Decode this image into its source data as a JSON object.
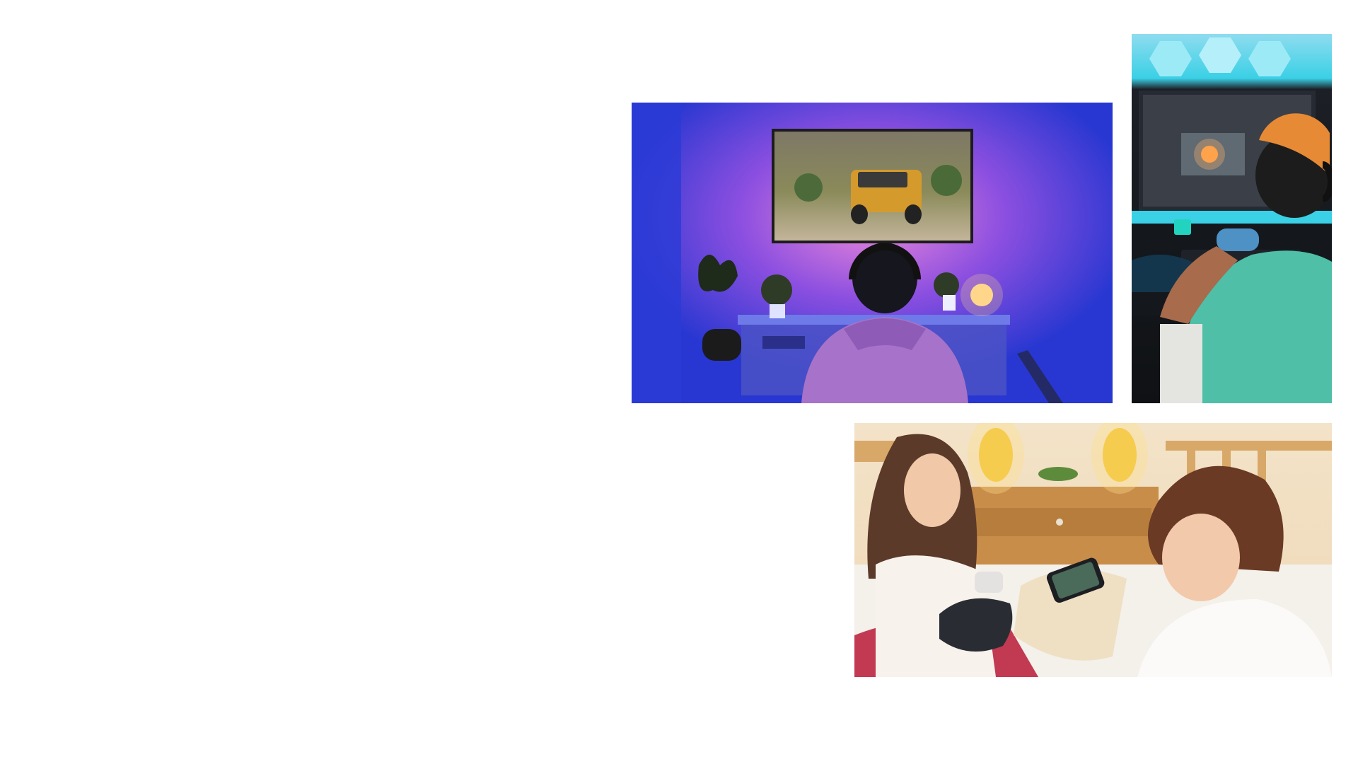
{
  "page": {
    "background": "#ffffff"
  },
  "hero": {
    "image_description_icon": "racing-game-scene-icon",
    "colors": {
      "snow": "#f4f5f8",
      "fog": "#dcdcdc",
      "hills": "#8f8a80",
      "yellow_truck": "#d79a2a",
      "red_truck": "#b73a2c"
    }
  },
  "tiles": [
    {
      "id": "living-room",
      "icon": "console-tv-gaming-photo-icon"
    },
    {
      "id": "pc-desk",
      "icon": "pc-gaming-desk-photo-icon"
    },
    {
      "id": "bedroom",
      "icon": "mobile-cloud-gaming-photo-icon"
    }
  ],
  "palette": {
    "living_bg_blue": "#2a3bd6",
    "living_glow_pink": "#e48ad9",
    "desk_cyan": "#3ad0e6",
    "desk_shirt": "#4fbfa8",
    "bedroom_warm": "#f0d3a8",
    "bedroom_blanket": "#c23a52"
  }
}
